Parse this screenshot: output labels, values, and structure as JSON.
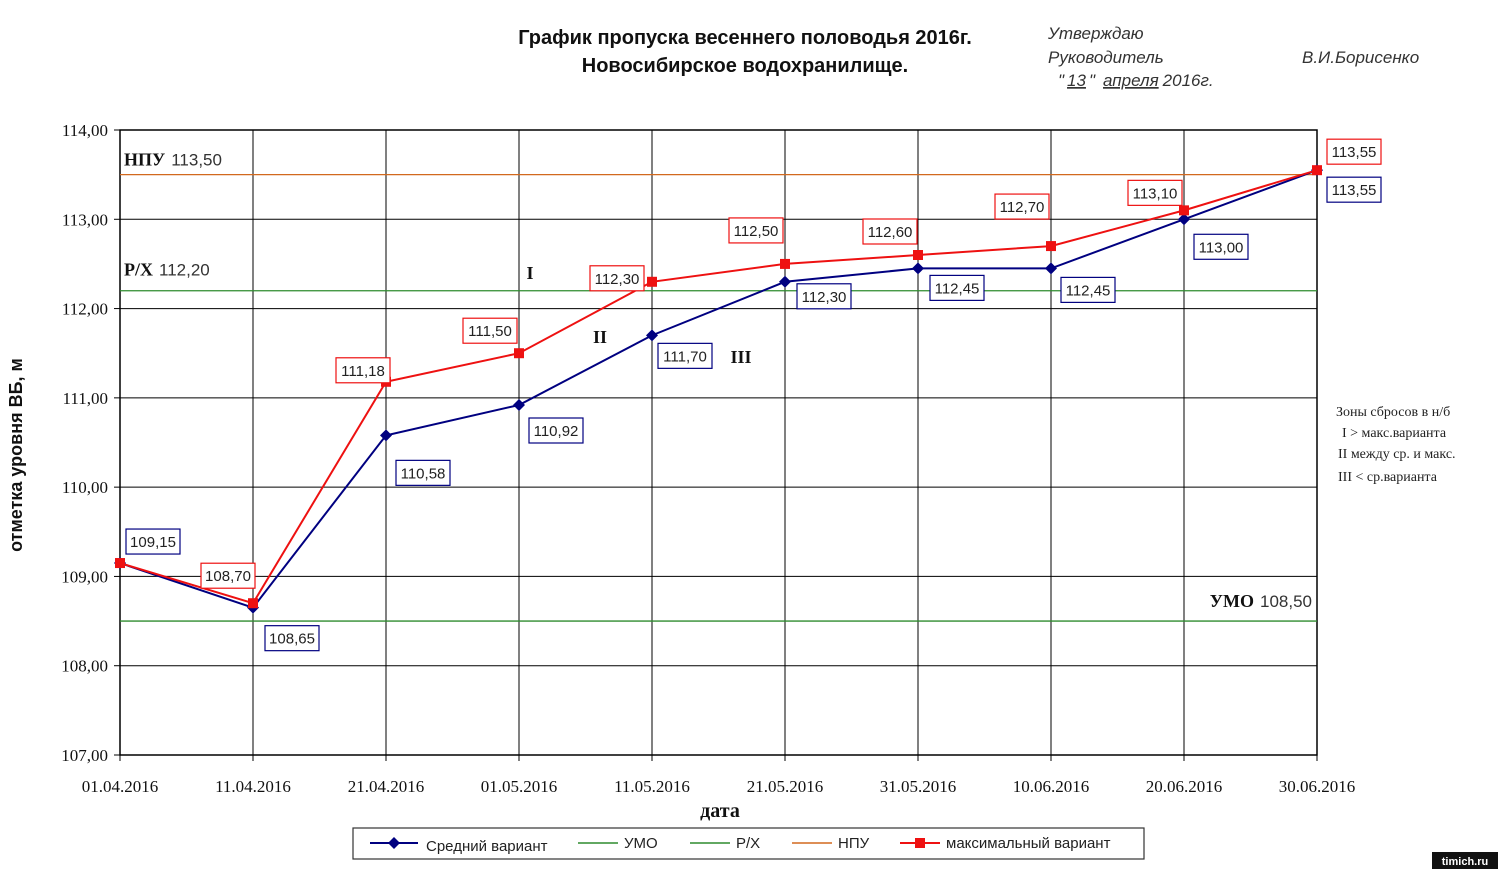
{
  "title_line1": "График пропуска весеннего половодья 2016г.",
  "title_line2": "Новосибирское водохранилище.",
  "approval": {
    "approve": "Утверждаю",
    "position": "Руководитель",
    "name": "В.И.Борисенко",
    "date_q1": "\"",
    "date_day": "13",
    "date_q2": "\"",
    "date_month": "апреля",
    "date_year": "2016г."
  },
  "levels": [
    {
      "label": "НПУ",
      "value": 113.5,
      "value_text": "113,50",
      "color": "#d2691e"
    },
    {
      "label": "Р/Х",
      "value": 112.2,
      "value_text": "112,20",
      "color": "#2e8b2e"
    },
    {
      "label": "УМО",
      "value": 108.5,
      "value_text": "108,50",
      "color": "#2e8b2e"
    }
  ],
  "zone_marks": [
    "I",
    "II",
    "III"
  ],
  "zones_note": {
    "title": "Зоны сбросов  в н/б",
    "line1": "I > макс.варианта",
    "line2": "II между ср. и макс.",
    "line3": "III < ср.варианта"
  },
  "legend": {
    "avg": "Средний вариант",
    "umo": "УМО",
    "rx": "Р/Х",
    "npu": "НПУ",
    "max": "максимальный вариант"
  },
  "watermark": "timich.ru",
  "chart_data": {
    "type": "line",
    "xlabel": "дата",
    "ylabel": "отметка уровня ВБ, м",
    "ylim": [
      107,
      114
    ],
    "y_ticks": [
      "107,00",
      "108,00",
      "109,00",
      "110,00",
      "111,00",
      "112,00",
      "113,00",
      "114,00"
    ],
    "x": [
      "01.04.2016",
      "11.04.2016",
      "21.04.2016",
      "01.05.2016",
      "11.05.2016",
      "21.05.2016",
      "31.05.2016",
      "10.06.2016",
      "20.06.2016",
      "30.06.2016"
    ],
    "grid": true,
    "legend_position": "bottom",
    "series": [
      {
        "name": "Средний вариант",
        "color": "#000080",
        "marker": "diamond",
        "values": [
          109.15,
          108.65,
          110.58,
          110.92,
          111.7,
          112.3,
          112.45,
          112.45,
          113.0,
          113.55
        ],
        "labels": [
          "109,15",
          "108,65",
          "110,58",
          "110,92",
          "111,70",
          "112,30",
          "112,45",
          "112,45",
          "113,00",
          "113,55"
        ]
      },
      {
        "name": "максимальный вариант",
        "color": "#ee1111",
        "marker": "square",
        "values": [
          109.15,
          108.7,
          111.18,
          111.5,
          112.3,
          112.5,
          112.6,
          112.7,
          113.1,
          113.55
        ],
        "labels": [
          null,
          "108,70",
          "111,18",
          "111,50",
          "112,30",
          "112,50",
          "112,60",
          "112,70",
          "113,10",
          "113,55"
        ]
      }
    ]
  }
}
